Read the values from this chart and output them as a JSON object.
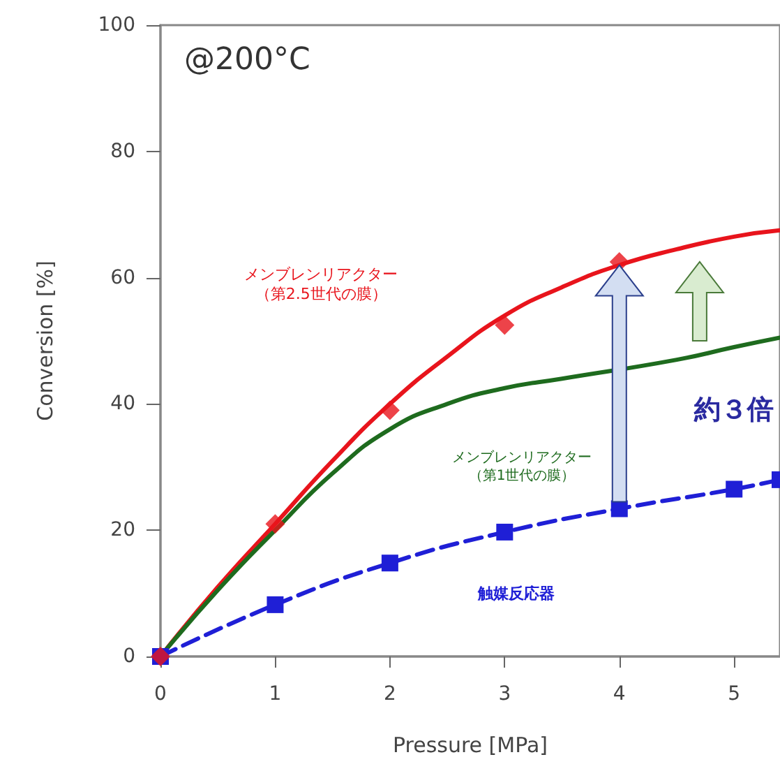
{
  "chart_data": {
    "type": "line",
    "xlabel": "Pressure [MPa]",
    "ylabel": "Conversion [%]",
    "xlim": [
      0,
      5.4
    ],
    "xticks": [
      0,
      1,
      2,
      3,
      4,
      5
    ],
    "ylim": [
      0,
      100
    ],
    "yticks": [
      0,
      20,
      40,
      60,
      80,
      100
    ],
    "grid": false,
    "series": [
      {
        "color": "#e8141c",
        "marker": "none",
        "line_style": "solid",
        "x": [
          0,
          0.5,
          1,
          1.5,
          2,
          2.5,
          3,
          3.5,
          4,
          4.5,
          5,
          5.4
        ],
        "values": [
          0,
          11,
          21,
          31,
          40,
          47.5,
          54,
          58.5,
          62,
          64.5,
          66.5,
          67.5
        ]
      },
      {
        "type": "scatter",
        "color": "#e8141c",
        "marker": "diamond",
        "x": [
          0,
          1,
          2,
          3,
          4
        ],
        "values": [
          0,
          21,
          39,
          52.5,
          62.5
        ]
      },
      {
        "color": "#1e6b1e",
        "marker": "none",
        "line_style": "solid",
        "x": [
          0,
          0.5,
          1,
          1.5,
          2,
          2.5,
          3,
          3.5,
          4.5,
          5,
          5.4
        ],
        "values": [
          0,
          10.5,
          20,
          29,
          36,
          40,
          42.5,
          44,
          47,
          49,
          50.5
        ]
      },
      {
        "color": "#1f1fd6",
        "marker": "square",
        "line_style": "dashed",
        "x": [
          0,
          1,
          2,
          3,
          4,
          5,
          5.4
        ],
        "values": [
          0,
          8.2,
          14.8,
          19.7,
          23.4,
          26.5,
          28
        ]
      }
    ],
    "annotations": [
      "@200°C",
      "メンブレンリアクター（第2.5世代の膜）",
      "メンブレンリアクター（第1世代の膜）",
      "触媒反応器",
      "約３倍"
    ]
  }
}
